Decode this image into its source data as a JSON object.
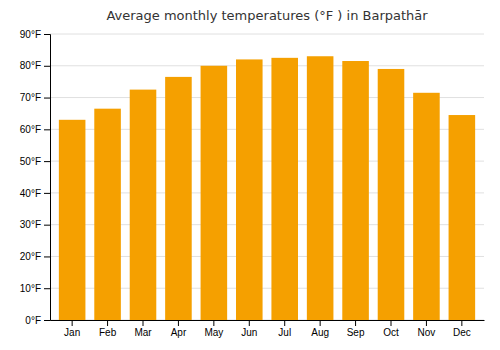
{
  "chart_data": {
    "type": "bar",
    "title": "Average monthly temperatures (°F ) in Barpathār",
    "categories": [
      "Jan",
      "Feb",
      "Mar",
      "Apr",
      "May",
      "Jun",
      "Jul",
      "Aug",
      "Sep",
      "Oct",
      "Nov",
      "Dec"
    ],
    "values": [
      63,
      66.5,
      72.5,
      76.5,
      80,
      82,
      82.5,
      83,
      81.5,
      79,
      71.5,
      64.5
    ],
    "color": "#F5A000",
    "ylim": [
      0,
      90
    ],
    "yticks": [
      {
        "value": 0,
        "label": "0°F"
      },
      {
        "value": 10,
        "label": "10°F"
      },
      {
        "value": 20,
        "label": "20°F"
      },
      {
        "value": 30,
        "label": "30°F"
      },
      {
        "value": 40,
        "label": "40°F"
      },
      {
        "value": 50,
        "label": "50°F"
      },
      {
        "value": 60,
        "label": "60°F"
      },
      {
        "value": 70,
        "label": "70°F"
      },
      {
        "value": 80,
        "label": "80°F"
      },
      {
        "value": 90,
        "label": "90°F"
      }
    ],
    "grid": true
  }
}
